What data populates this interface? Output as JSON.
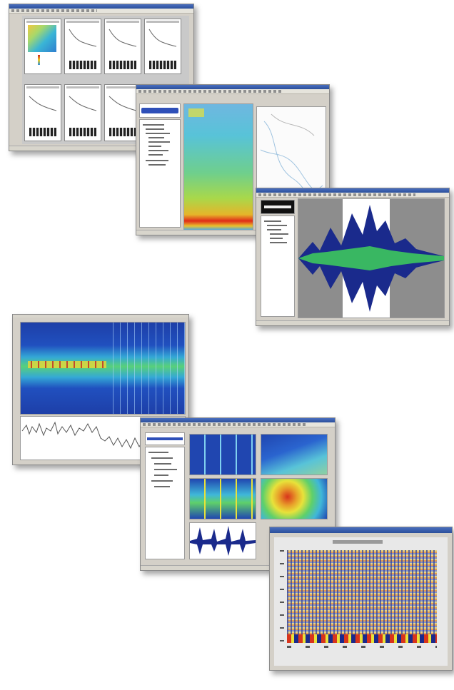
{
  "windows": [
    {
      "id": "window-thumbnails",
      "title": ""
    },
    {
      "id": "window-spectrogram-map",
      "title": ""
    },
    {
      "id": "window-waveform",
      "title": ""
    },
    {
      "id": "window-time-frequency",
      "title": ""
    },
    {
      "id": "window-multi-panel",
      "title": ""
    },
    {
      "id": "window-phase-plot",
      "title": ""
    }
  ],
  "colors": {
    "spectro_blue": "#2046b0",
    "spectro_cyan": "#3fb7d9",
    "spectro_green": "#5fd06a",
    "spectro_yellow": "#e8e23a",
    "spectro_red": "#d8341c",
    "waveform_navy": "#1a2a8c",
    "waveform_green": "#3fd05a",
    "background_gray": "#8d8d8d"
  },
  "icons": [
    "toolbar-icon",
    "tree-node-icon"
  ]
}
